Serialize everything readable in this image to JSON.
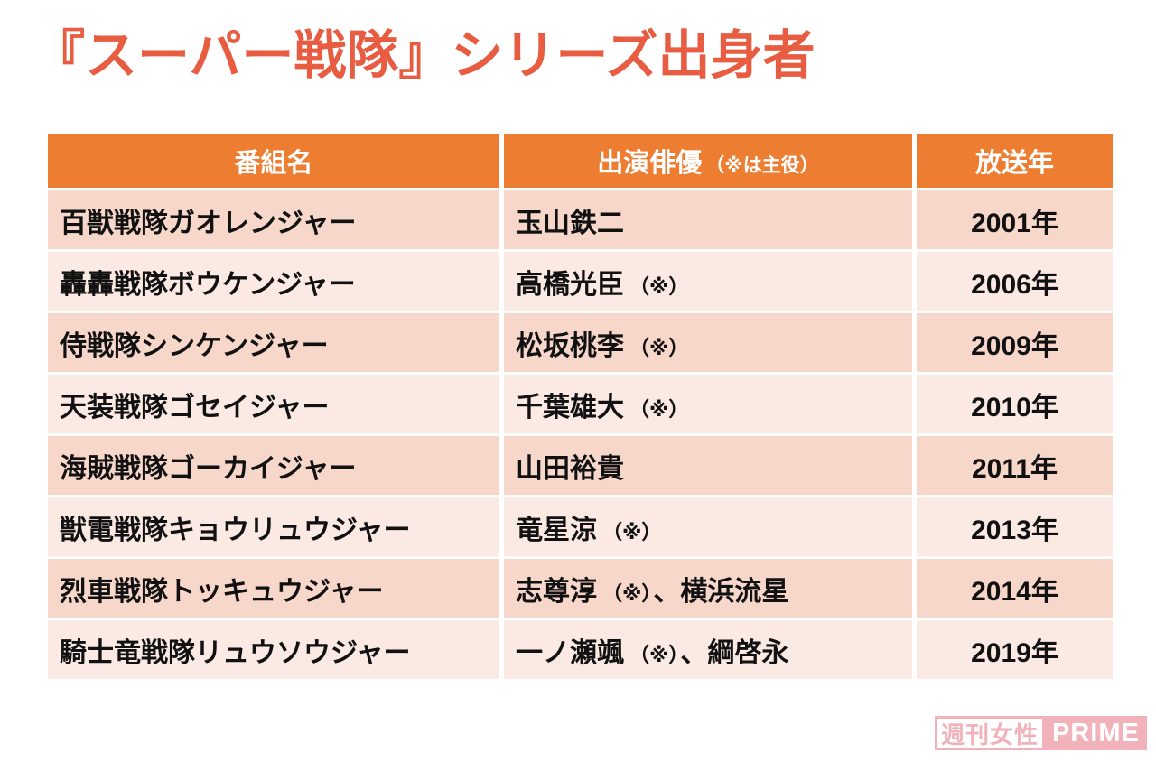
{
  "page": {
    "title": "『スーパー戦隊』シリーズ出身者"
  },
  "colors": {
    "title": "#E85C41",
    "header_bg": "#ED7D31",
    "header_text": "#FFFFFF",
    "row_odd": "#F8D7CB",
    "row_even": "#FBE9E3",
    "cell_text": "#111111",
    "watermark_pink": "#F1B2BA"
  },
  "table": {
    "header": {
      "col1": "番組名",
      "col2_main": "出演俳優",
      "col2_note": "（※は主役）",
      "col3": "放送年"
    },
    "rows": [
      {
        "show": "百獣戦隊ガオレンジャー",
        "actor_parts": [
          {
            "t": "玉山鉄二",
            "small": false
          }
        ],
        "year": "2001年"
      },
      {
        "show": "轟轟戦隊ボウケンジャー",
        "actor_parts": [
          {
            "t": "高橋光臣",
            "small": false
          },
          {
            "t": "（※）",
            "small": true
          }
        ],
        "year": "2006年"
      },
      {
        "show": "侍戦隊シンケンジャー",
        "actor_parts": [
          {
            "t": "松坂桃李",
            "small": false
          },
          {
            "t": "（※）",
            "small": true
          }
        ],
        "year": "2009年"
      },
      {
        "show": "天装戦隊ゴセイジャー",
        "actor_parts": [
          {
            "t": "千葉雄大",
            "small": false
          },
          {
            "t": "（※）",
            "small": true
          }
        ],
        "year": "2010年"
      },
      {
        "show": "海賊戦隊ゴーカイジャー",
        "actor_parts": [
          {
            "t": "山田裕貴",
            "small": false
          }
        ],
        "year": "2011年"
      },
      {
        "show": "獣電戦隊キョウリュウジャー",
        "actor_parts": [
          {
            "t": "竜星涼",
            "small": false
          },
          {
            "t": "（※）",
            "small": true
          }
        ],
        "year": "2013年"
      },
      {
        "show": "烈車戦隊トッキュウジャー",
        "actor_parts": [
          {
            "t": "志尊淳",
            "small": false
          },
          {
            "t": "（※）",
            "small": true
          },
          {
            "t": "、横浜流星",
            "small": false
          }
        ],
        "year": "2014年"
      },
      {
        "show": "騎士竜戦隊リュウソウジャー",
        "actor_parts": [
          {
            "t": "一ノ瀬颯",
            "small": false
          },
          {
            "t": "（※）",
            "small": true
          },
          {
            "t": "、綱啓永",
            "small": false
          }
        ],
        "year": "2019年"
      }
    ]
  },
  "watermark": {
    "left_text": "週刊女性",
    "right_text": "PRIME"
  },
  "chart_data": {
    "type": "table",
    "title": "『スーパー戦隊』シリーズ出身者",
    "columns": [
      "番組名",
      "出演俳優（※は主役）",
      "放送年"
    ],
    "rows": [
      [
        "百獣戦隊ガオレンジャー",
        "玉山鉄二",
        "2001年"
      ],
      [
        "轟轟戦隊ボウケンジャー",
        "高橋光臣（※）",
        "2006年"
      ],
      [
        "侍戦隊シンケンジャー",
        "松坂桃李（※）",
        "2009年"
      ],
      [
        "天装戦隊ゴセイジャー",
        "千葉雄大（※）",
        "2010年"
      ],
      [
        "海賊戦隊ゴーカイジャー",
        "山田裕貴",
        "2011年"
      ],
      [
        "獣電戦隊キョウリュウジャー",
        "竜星涼（※）",
        "2013年"
      ],
      [
        "烈車戦隊トッキュウジャー",
        "志尊淳（※）、横浜流星",
        "2014年"
      ],
      [
        "騎士竜戦隊リュウソウジャー",
        "一ノ瀬颯（※）、綱啓永",
        "2019年"
      ]
    ],
    "layout": {
      "header_bg": "#ED7D31",
      "banded_rows": true,
      "band_colors": [
        "#F8D7CB",
        "#FBE9E3"
      ],
      "grid": "white-separators"
    }
  }
}
